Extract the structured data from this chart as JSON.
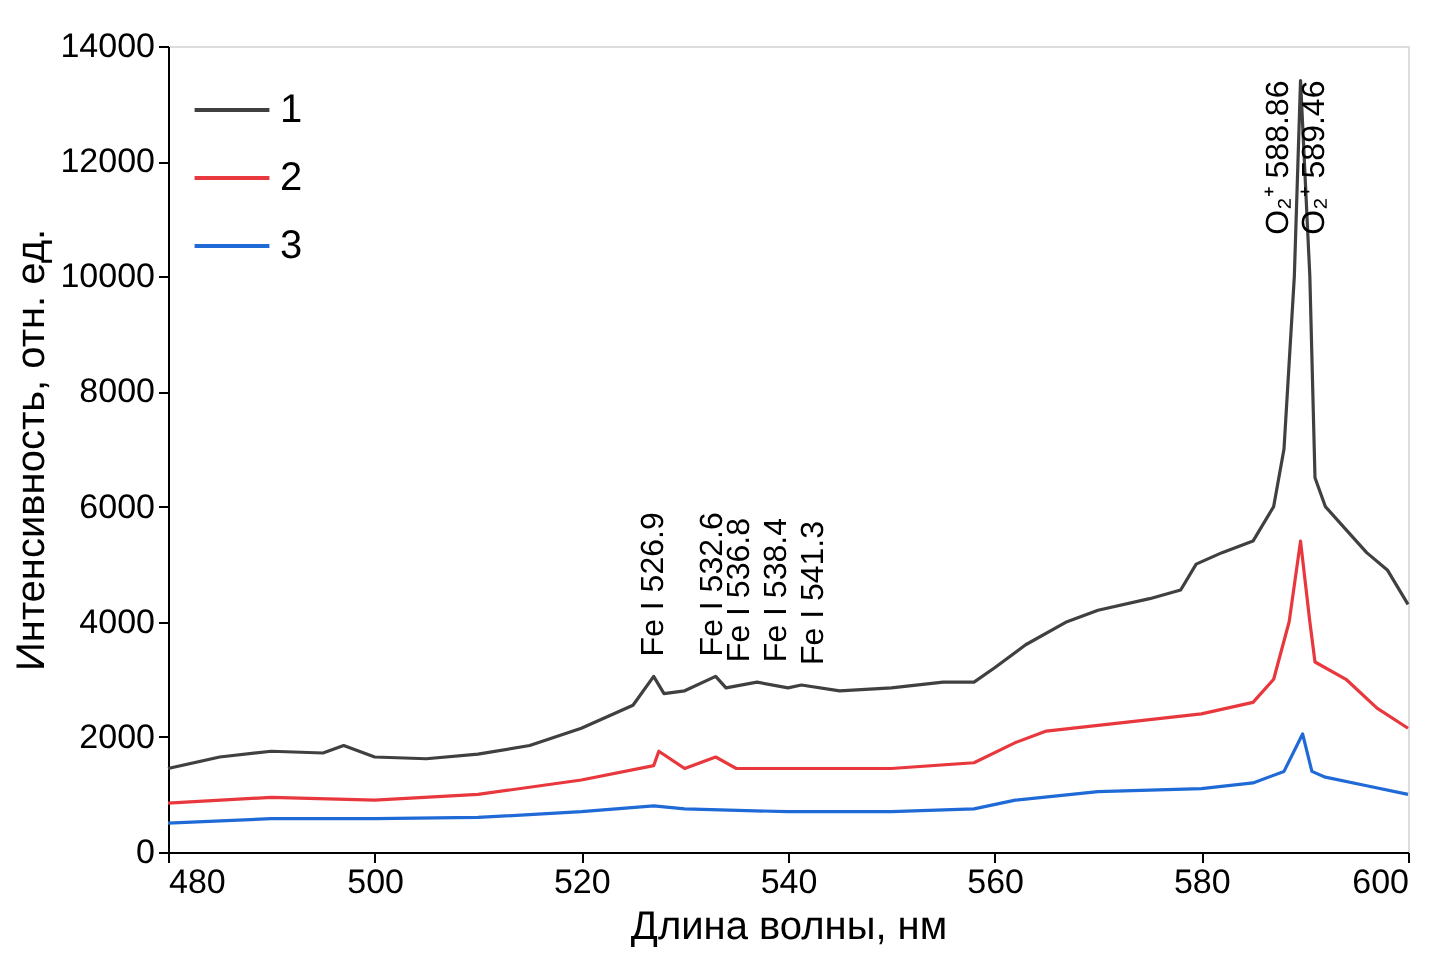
{
  "chart_data": {
    "type": "line",
    "xlabel": "Длина волны, нм",
    "ylabel": "Интенсивность, отн. ед.",
    "xlim": [
      480,
      600
    ],
    "xticks": [
      480,
      500,
      520,
      540,
      560,
      580,
      600
    ],
    "ylim": [
      0,
      14000
    ],
    "yticks": [
      0,
      2000,
      4000,
      6000,
      8000,
      10000,
      12000,
      14000
    ],
    "grid": false,
    "legend": "top left",
    "line_style": "solid",
    "marker": "none",
    "series": [
      {
        "name": "1",
        "color": "#404040",
        "x": [
          480,
          485,
          490,
          495,
          497,
          500,
          505,
          510,
          515,
          520,
          525,
          527,
          528,
          530,
          533,
          534,
          537,
          540,
          541.3,
          545,
          550,
          555,
          558,
          560,
          563,
          567,
          570,
          575,
          578,
          579.5,
          582,
          585,
          587,
          588,
          589,
          589.6,
          590.5,
          591,
          592,
          594,
          596,
          598,
          600
        ],
        "values": [
          1450,
          1650,
          1750,
          1720,
          1850,
          1650,
          1620,
          1700,
          1850,
          2150,
          2550,
          3050,
          2750,
          2800,
          3050,
          2850,
          2950,
          2850,
          2900,
          2800,
          2850,
          2950,
          2950,
          3200,
          3600,
          4000,
          4200,
          4400,
          4550,
          5000,
          5200,
          5400,
          6000,
          7000,
          10000,
          13400,
          10000,
          6500,
          6000,
          5600,
          5200,
          4900,
          4300
        ]
      },
      {
        "name": "2",
        "color": "#e8383d",
        "x": [
          480,
          490,
          500,
          510,
          520,
          527,
          527.5,
          530,
          533,
          535,
          540,
          550,
          558,
          562,
          565,
          570,
          575,
          580,
          585,
          587,
          588.5,
          589.6,
          590.5,
          591,
          594,
          597,
          600
        ],
        "values": [
          850,
          950,
          900,
          1000,
          1250,
          1500,
          1750,
          1450,
          1650,
          1450,
          1450,
          1450,
          1550,
          1900,
          2100,
          2200,
          2300,
          2400,
          2600,
          3000,
          4000,
          5400,
          4000,
          3300,
          3000,
          2500,
          2150
        ]
      },
      {
        "name": "3",
        "color": "#1f6ad6",
        "x": [
          480,
          490,
          500,
          510,
          520,
          527,
          530,
          540,
          550,
          558,
          562,
          570,
          580,
          585,
          588,
          589.8,
          590.7,
          592,
          596,
          600
        ],
        "values": [
          500,
          580,
          580,
          600,
          700,
          800,
          750,
          700,
          700,
          750,
          900,
          1050,
          1100,
          1200,
          1400,
          2050,
          1400,
          1300,
          1150,
          1000
        ]
      }
    ],
    "annotations": [
      {
        "text": "Fe I 526.9",
        "x": 526.9,
        "y": 3050
      },
      {
        "text": "Fe I 532.6",
        "x": 532.6,
        "y": 3050
      },
      {
        "text": "Fe I 536.8",
        "x": 536.8,
        "y": 2950
      },
      {
        "text": "Fe I 538.4",
        "x": 538.4,
        "y": 2950
      },
      {
        "text": "Fe I 541.3",
        "x": 541.3,
        "y": 2900
      },
      {
        "text": "O₂⁺ 588.86",
        "x": 588.86,
        "y": 13400
      },
      {
        "text": "O₂⁺ 589.46",
        "x": 589.46,
        "y": 13400
      }
    ]
  }
}
